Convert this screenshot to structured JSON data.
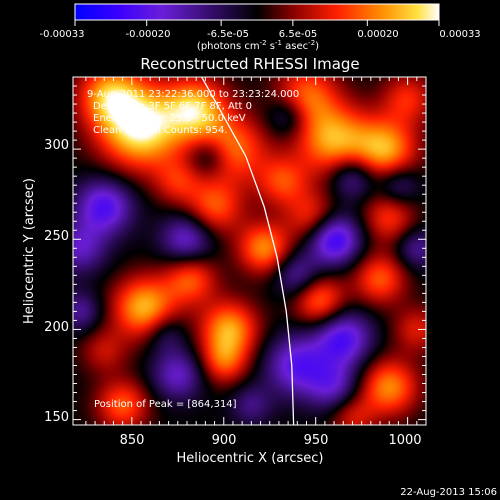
{
  "colorbar": {
    "tick_labels": [
      "-0.00033",
      "-0.00020",
      "-6.5e-05",
      "6.5e-05",
      "0.00020",
      "0.00033"
    ],
    "tick_values": [
      -0.00033,
      -0.0002,
      -6.5e-05,
      6.5e-05,
      0.0002,
      0.00033
    ],
    "range": [
      -0.00033,
      0.00033
    ],
    "units_label": "(photons cm",
    "units_sup1": "-2",
    "units_mid": " s",
    "units_sup2": "-1",
    "units_end": " asec",
    "units_sup3": "-2",
    "units_close": ")"
  },
  "chart_data": {
    "type": "heatmap",
    "title": "Reconstructed RHESSI Image",
    "xlabel": "Heliocentric X (arcsec)",
    "ylabel": "Heliocentric Y (arcsec)",
    "xlim": [
      818,
      1010
    ],
    "ylim": [
      147,
      340
    ],
    "x_ticks": [
      850,
      900,
      950,
      1000
    ],
    "x_tick_labels": [
      "850",
      "900",
      "950",
      "1000"
    ],
    "y_ticks": [
      150,
      200,
      250,
      300
    ],
    "y_tick_labels": [
      "150",
      "200",
      "250",
      "300"
    ],
    "colormap": "red-temperature with negative blue",
    "value_range": [
      -0.00033,
      0.00033
    ],
    "limb_curve": [
      [
        888,
        340
      ],
      [
        900,
        318
      ],
      [
        912,
        296
      ],
      [
        922,
        268
      ],
      [
        929,
        240
      ],
      [
        934,
        210
      ],
      [
        937,
        180
      ],
      [
        938,
        147
      ]
    ],
    "peak_marker": [
      864,
      314
    ],
    "annotations": {
      "time_range": "9-Aug-2011 23:22:36.000 to 23:23:24.000",
      "detectors": "Detectors: 3F 5F 6F 7F 8F, Att 0",
      "energy": "Energy Range: 25.0 - 50.0 keV",
      "clean": "Clean     Total Counts: 954.",
      "peak": "Position of Peak = [864,314]"
    },
    "blobs": [
      {
        "x": 855,
        "y": 312,
        "amp": 0.00033,
        "r": 16
      },
      {
        "x": 838,
        "y": 330,
        "amp": 0.00022,
        "r": 12
      },
      {
        "x": 885,
        "y": 322,
        "amp": 0.00026,
        "r": 12
      },
      {
        "x": 905,
        "y": 300,
        "amp": 0.0002,
        "r": 13
      },
      {
        "x": 960,
        "y": 305,
        "amp": 0.00025,
        "r": 14
      },
      {
        "x": 988,
        "y": 300,
        "amp": 0.00024,
        "r": 12
      },
      {
        "x": 1000,
        "y": 328,
        "amp": 0.00014,
        "r": 10
      },
      {
        "x": 945,
        "y": 330,
        "amp": 0.00018,
        "r": 12
      },
      {
        "x": 932,
        "y": 282,
        "amp": 0.00016,
        "r": 10
      },
      {
        "x": 895,
        "y": 268,
        "amp": 0.00018,
        "r": 11
      },
      {
        "x": 875,
        "y": 282,
        "amp": 0.00012,
        "r": 9
      },
      {
        "x": 922,
        "y": 245,
        "amp": 0.00022,
        "r": 10
      },
      {
        "x": 948,
        "y": 262,
        "amp": 0.00015,
        "r": 10
      },
      {
        "x": 990,
        "y": 262,
        "amp": 0.00015,
        "r": 10
      },
      {
        "x": 857,
        "y": 212,
        "amp": 0.00026,
        "r": 12
      },
      {
        "x": 882,
        "y": 228,
        "amp": 0.00018,
        "r": 10
      },
      {
        "x": 903,
        "y": 200,
        "amp": 0.00024,
        "r": 11
      },
      {
        "x": 900,
        "y": 182,
        "amp": 0.00016,
        "r": 9
      },
      {
        "x": 845,
        "y": 158,
        "amp": 0.00018,
        "r": 10
      },
      {
        "x": 835,
        "y": 188,
        "amp": 0.0001,
        "r": 9
      },
      {
        "x": 952,
        "y": 216,
        "amp": 0.0002,
        "r": 10
      },
      {
        "x": 985,
        "y": 228,
        "amp": 0.00018,
        "r": 10
      },
      {
        "x": 990,
        "y": 168,
        "amp": 0.00022,
        "r": 11
      },
      {
        "x": 1005,
        "y": 200,
        "amp": 0.00012,
        "r": 9
      },
      {
        "x": 970,
        "y": 152,
        "amp": 0.00012,
        "r": 9
      },
      {
        "x": 835,
        "y": 268,
        "amp": -0.00022,
        "r": 11
      },
      {
        "x": 822,
        "y": 245,
        "amp": -0.00015,
        "r": 10
      },
      {
        "x": 880,
        "y": 250,
        "amp": -0.00018,
        "r": 10
      },
      {
        "x": 892,
        "y": 296,
        "amp": -0.00012,
        "r": 8
      },
      {
        "x": 935,
        "y": 318,
        "amp": -0.00012,
        "r": 8
      },
      {
        "x": 960,
        "y": 250,
        "amp": -0.00026,
        "r": 10
      },
      {
        "x": 940,
        "y": 230,
        "amp": -0.00014,
        "r": 9
      },
      {
        "x": 970,
        "y": 285,
        "amp": -0.00016,
        "r": 9
      },
      {
        "x": 995,
        "y": 280,
        "amp": -0.00012,
        "r": 8
      },
      {
        "x": 940,
        "y": 180,
        "amp": -0.0002,
        "r": 12
      },
      {
        "x": 965,
        "y": 195,
        "amp": -0.00022,
        "r": 11
      },
      {
        "x": 960,
        "y": 168,
        "amp": -0.00015,
        "r": 10
      },
      {
        "x": 1005,
        "y": 245,
        "amp": -0.00012,
        "r": 8
      },
      {
        "x": 875,
        "y": 175,
        "amp": -0.00016,
        "r": 10
      },
      {
        "x": 868,
        "y": 198,
        "amp": -0.0001,
        "r": 8
      },
      {
        "x": 822,
        "y": 210,
        "amp": -0.00012,
        "r": 8
      },
      {
        "x": 915,
        "y": 158,
        "amp": -0.0001,
        "r": 8
      }
    ]
  },
  "footer": {
    "timestamp": "22-Aug-2013 15:06"
  }
}
